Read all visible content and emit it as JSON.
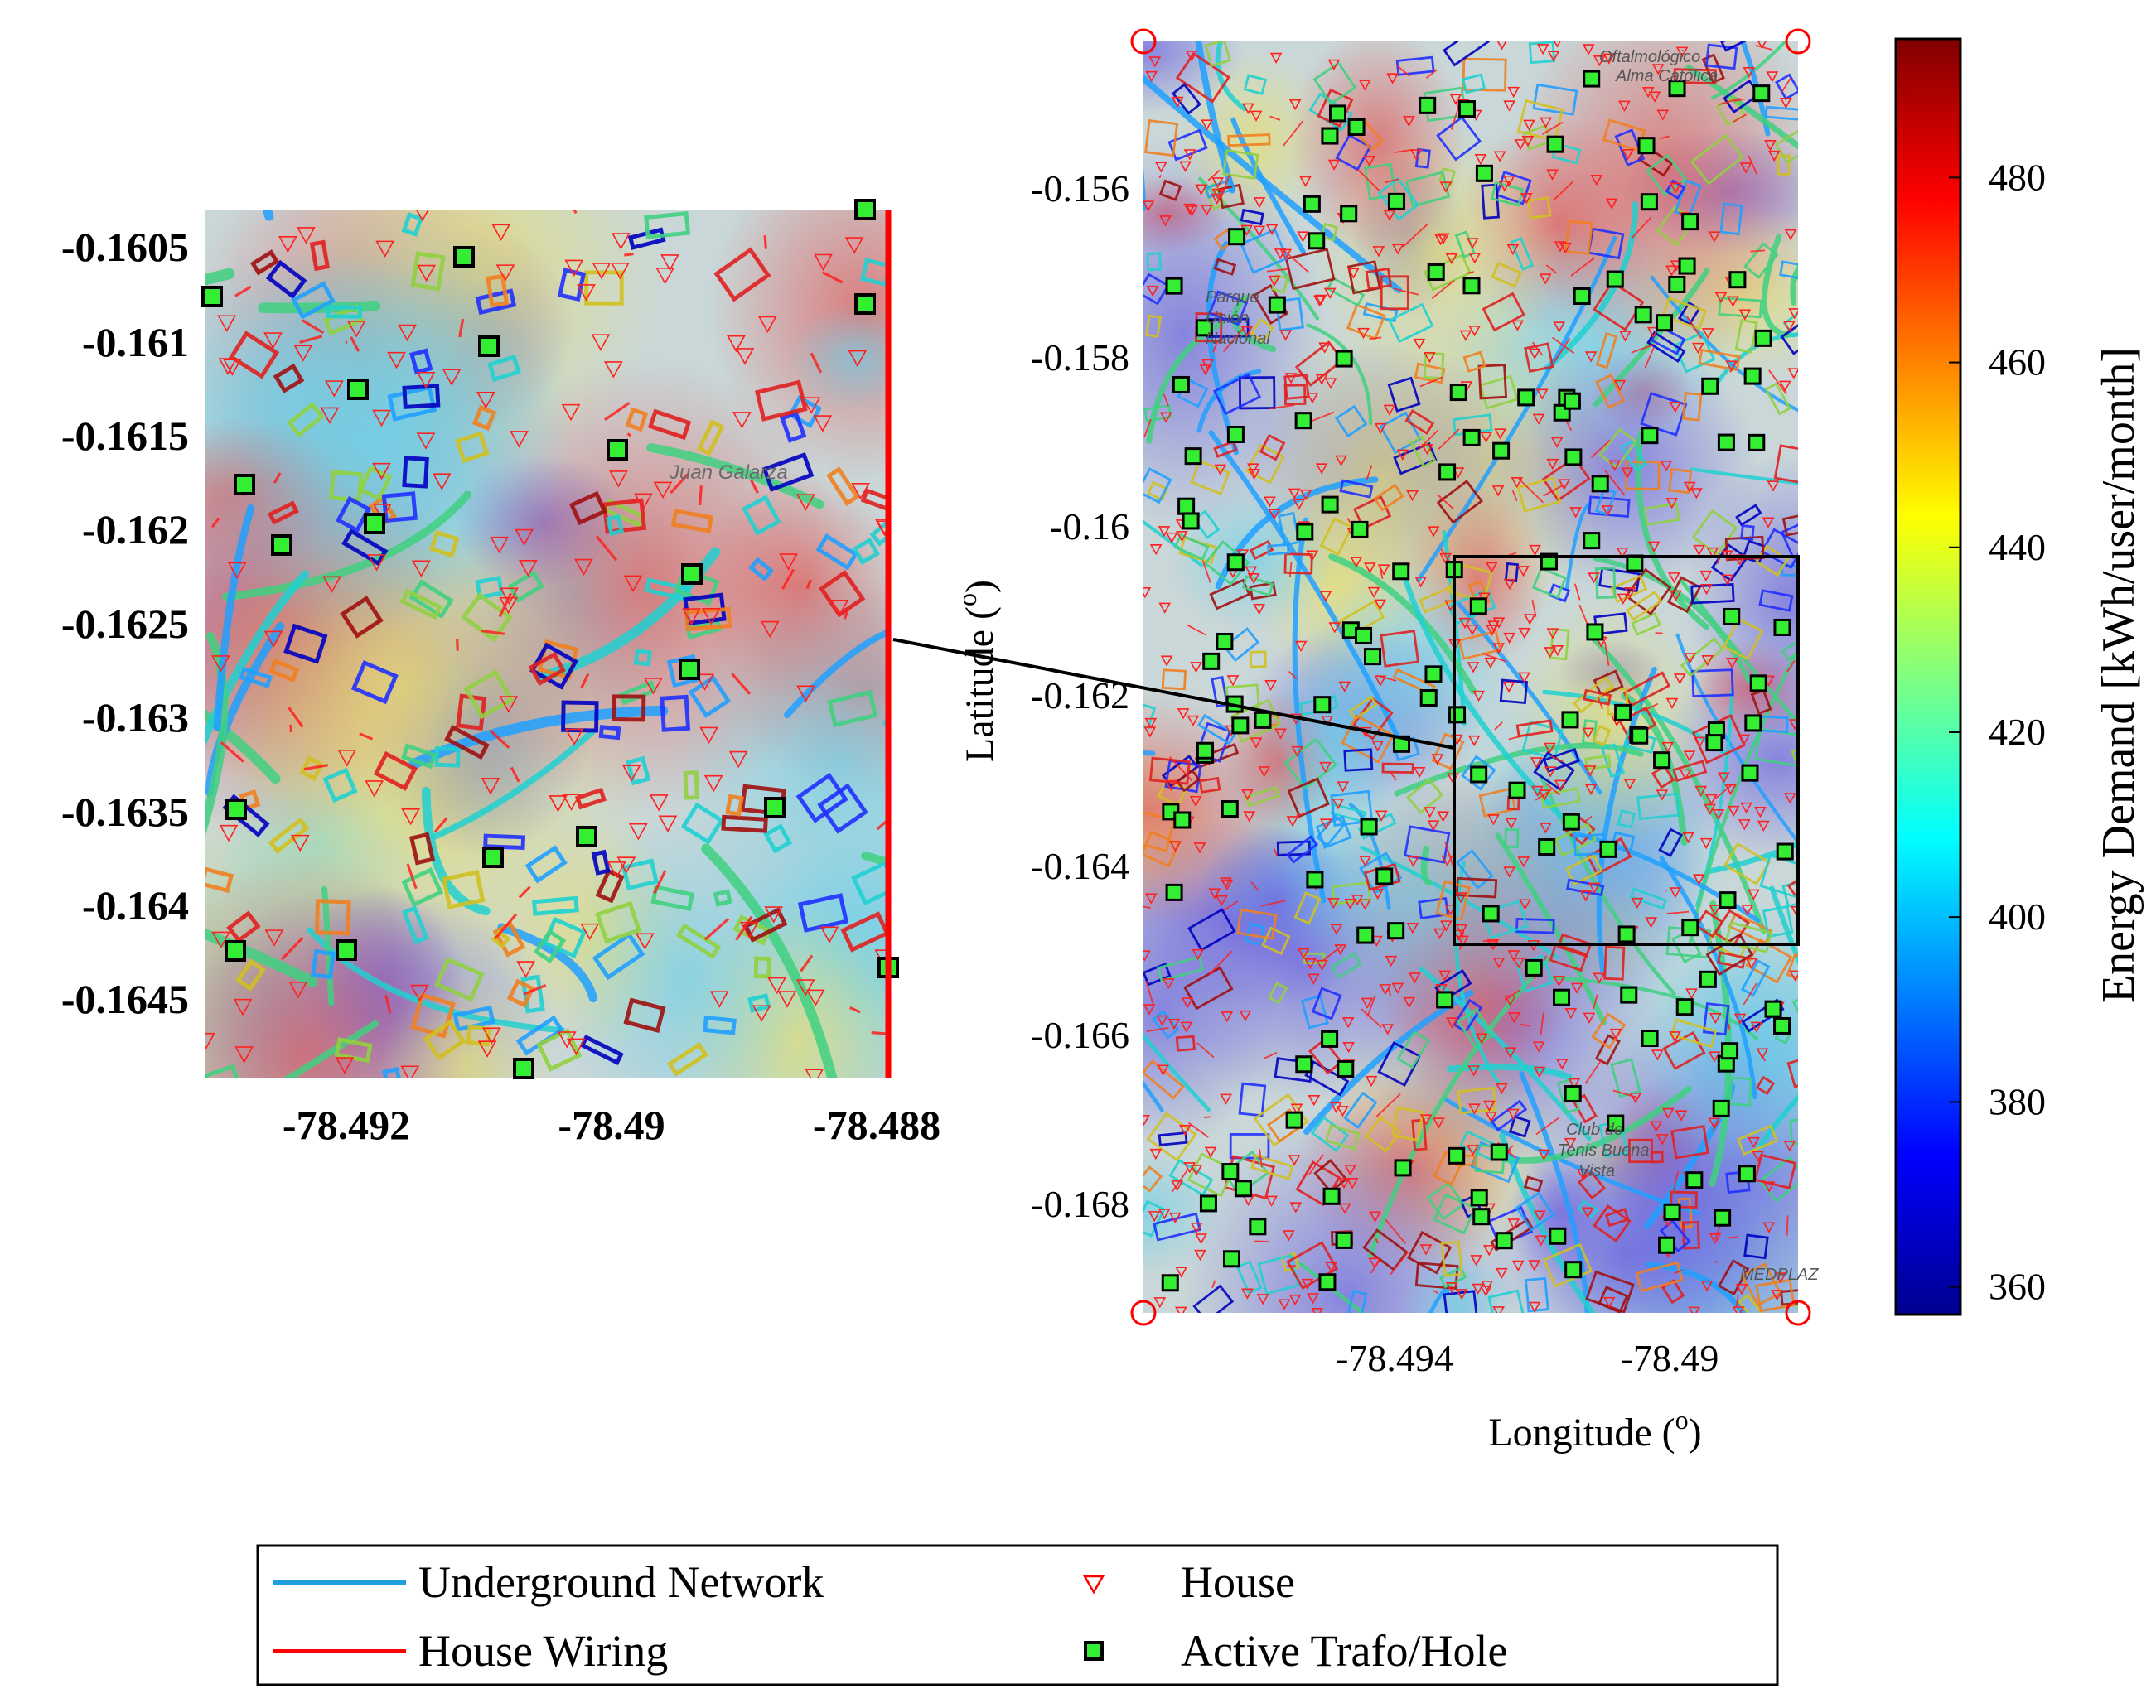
{
  "map": {
    "xlabel": "Longitude (",
    "xlabel_sup": "o",
    "xlabel_end": ")",
    "ylabel": "Latitude (",
    "ylabel_sup": "o",
    "ylabel_end": ")",
    "x_ticks": [
      "-78.494",
      "-78.49"
    ],
    "y_ticks": [
      "-0.156",
      "-0.158",
      "-0.16",
      "-0.162",
      "-0.164",
      "-0.166",
      "-0.168"
    ],
    "labels": [
      "Parque",
      "Unión",
      "Nacional",
      "Club de",
      "Tenis Buena",
      "Vista",
      "MEDPLAZ",
      "Oftalmológico",
      "Alma Católica"
    ]
  },
  "inset": {
    "x_ticks": [
      "-78.492",
      "-78.49",
      "-78.488"
    ],
    "y_ticks": [
      "-0.1605",
      "-0.161",
      "-0.1615",
      "-0.162",
      "-0.1625",
      "-0.163",
      "-0.1635",
      "-0.164",
      "-0.1645"
    ],
    "labels": [
      "Juan Galarza"
    ]
  },
  "colorbar": {
    "label": "Energy Demand [kWh/user/month]",
    "ticks": [
      "360",
      "380",
      "400",
      "420",
      "440",
      "460",
      "480"
    ],
    "range": [
      357,
      495
    ],
    "colormap": "jet"
  },
  "legend": {
    "items": [
      {
        "label": "Underground Network",
        "marker": "line",
        "color": "#1f9ede"
      },
      {
        "label": "House",
        "marker": "triangle-down",
        "color": "#ff0000"
      },
      {
        "label": "House Wiring",
        "marker": "line",
        "color": "#ff0000"
      },
      {
        "label": "Active Trafo/Hole",
        "marker": "square",
        "color": "#33ee33"
      }
    ]
  },
  "colors": {
    "network": "#1f9ede",
    "wiring": "#ff0000",
    "trafo_fill": "#33ee33",
    "trafo_edge": "#000000"
  }
}
